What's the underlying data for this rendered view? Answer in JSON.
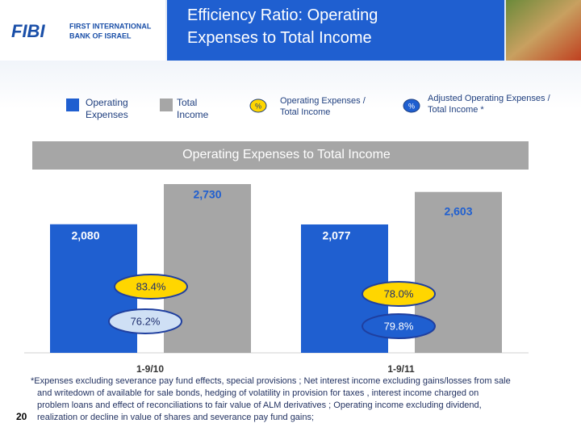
{
  "logo": {
    "mark": "FIBI",
    "line1": "FIRST INTERNATIONAL",
    "line2": "BANK OF ISRAEL"
  },
  "page_number": "20",
  "footnote": [
    "*Expenses excluding severance pay fund effects, special provisions ; Net interest income excluding gains/losses from sale",
    "and writedown of available for sale bonds, hedging of volatility in provision for taxes , interest income charged on",
    "problem loans and effect of reconciliations to fair value of  ALM derivatives ; Operating income excluding dividend,",
    "realization or decline in value of shares and severance pay fund gains;"
  ],
  "chart_data": {
    "type": "bar",
    "title": "Efficiency Ratio: Operating Expenses to Total Income",
    "subtitle": "Operating Expenses to Total Income",
    "categories": [
      "1-9/10",
      "1-9/11"
    ],
    "series": [
      {
        "name": "Operating Expenses",
        "color": "#1f5fd0",
        "values": [
          2080,
          2077
        ],
        "value_labels": [
          "2,080",
          "2,077"
        ]
      },
      {
        "name": "Total Income",
        "color": "#a6a6a6",
        "values": [
          2730,
          2603
        ],
        "value_labels": [
          "2,730",
          "2,603"
        ]
      }
    ],
    "ratios": [
      {
        "name": "Operating Expenses / Total Income",
        "symbol": "%",
        "color": "#ffd600",
        "values": [
          83.4,
          78.0
        ],
        "value_labels": [
          "83.4%",
          "78.0%"
        ]
      },
      {
        "name": "Adjusted Operating Expenses / Total Income *",
        "symbol": "%",
        "color": "#1f5fd0",
        "values": [
          76.2,
          79.8
        ],
        "value_labels": [
          "76.2%",
          "79.8%"
        ]
      }
    ]
  }
}
